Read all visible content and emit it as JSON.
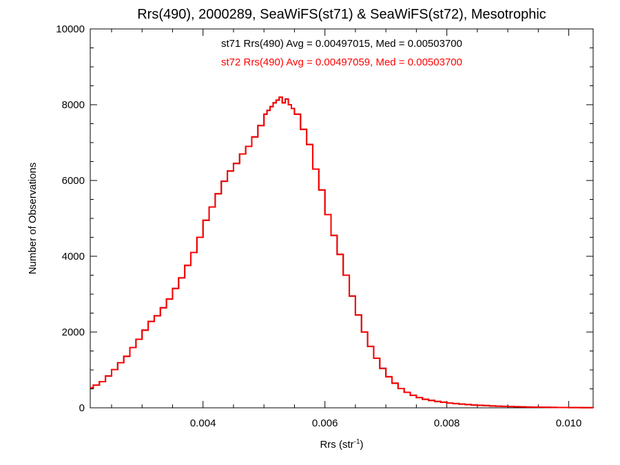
{
  "chart_data": {
    "type": "line",
    "step": true,
    "title": "Rrs(490), 2000289, SeaWiFS(st71) & SeaWiFS(st72), Mesotrophic",
    "xlabel_main": "Rrs (str",
    "xlabel_sup": "-1",
    "xlabel_close": ")",
    "ylabel": "Number of Observations",
    "xlim": [
      0.00215,
      0.0104
    ],
    "ylim": [
      0,
      10000
    ],
    "grid": false,
    "x_ticks": [
      0.004,
      0.006,
      0.008,
      0.01
    ],
    "x_tick_labels": [
      "0.004",
      "0.006",
      "0.008",
      "0.010"
    ],
    "y_ticks": [
      0,
      2000,
      4000,
      6000,
      8000,
      10000
    ],
    "y_tick_labels": [
      "0",
      "2000",
      "4000",
      "6000",
      "8000",
      "10000"
    ],
    "annotations": [
      {
        "text": "st71 Rrs(490) Avg = 0.00497015, Med = 0.00503700",
        "color": "#000000"
      },
      {
        "text": "st72 Rrs(490) Avg = 0.00497059, Med = 0.00503700",
        "color": "#ff0000"
      }
    ],
    "series": [
      {
        "key": "st71",
        "color": "#000000",
        "x": [
          0.00215,
          0.0022,
          0.0023,
          0.0024,
          0.0025,
          0.0026,
          0.0027,
          0.0028,
          0.0029,
          0.003,
          0.0031,
          0.0032,
          0.0033,
          0.0034,
          0.0035,
          0.0036,
          0.0037,
          0.0038,
          0.0039,
          0.004,
          0.0041,
          0.0042,
          0.0043,
          0.0044,
          0.0045,
          0.0046,
          0.0047,
          0.0048,
          0.0049,
          0.005,
          0.00505,
          0.0051,
          0.00515,
          0.0052,
          0.00525,
          0.0053,
          0.00535,
          0.0054,
          0.00545,
          0.0055,
          0.0056,
          0.0057,
          0.0058,
          0.0059,
          0.006,
          0.0061,
          0.0062,
          0.0063,
          0.0064,
          0.0065,
          0.0066,
          0.0067,
          0.0068,
          0.0069,
          0.007,
          0.0071,
          0.0072,
          0.0073,
          0.0074,
          0.0075,
          0.0076,
          0.0077,
          0.0078,
          0.0079,
          0.008,
          0.0081,
          0.0082,
          0.0083,
          0.0084,
          0.0085,
          0.0086,
          0.0087,
          0.0088,
          0.0089,
          0.009,
          0.0091,
          0.0092,
          0.0093,
          0.0094,
          0.0095,
          0.0096,
          0.0097,
          0.0098,
          0.0099,
          0.01,
          0.0101,
          0.0102,
          0.0103,
          0.0104
        ],
        "y": [
          530,
          600,
          690,
          840,
          1010,
          1190,
          1360,
          1590,
          1810,
          2050,
          2280,
          2430,
          2640,
          2870,
          3150,
          3430,
          3760,
          4100,
          4500,
          4950,
          5300,
          5650,
          5980,
          6250,
          6450,
          6700,
          6900,
          7150,
          7450,
          7750,
          7850,
          7950,
          8050,
          8120,
          8200,
          8050,
          8150,
          8000,
          7900,
          7750,
          7350,
          6950,
          6300,
          5750,
          5100,
          4550,
          4050,
          3500,
          2950,
          2450,
          2000,
          1620,
          1310,
          1040,
          820,
          650,
          510,
          410,
          330,
          270,
          225,
          195,
          168,
          148,
          128,
          112,
          98,
          86,
          75,
          66,
          58,
          50,
          44,
          38,
          33,
          29,
          25,
          21,
          18,
          15,
          13,
          11,
          9,
          8,
          7,
          6,
          5,
          4,
          3
        ]
      },
      {
        "key": "st72",
        "color": "#ff0000",
        "x": [
          0.00215,
          0.0022,
          0.0023,
          0.0024,
          0.0025,
          0.0026,
          0.0027,
          0.0028,
          0.0029,
          0.003,
          0.0031,
          0.0032,
          0.0033,
          0.0034,
          0.0035,
          0.0036,
          0.0037,
          0.0038,
          0.0039,
          0.004,
          0.0041,
          0.0042,
          0.0043,
          0.0044,
          0.0045,
          0.0046,
          0.0047,
          0.0048,
          0.0049,
          0.005,
          0.00505,
          0.0051,
          0.00515,
          0.0052,
          0.00525,
          0.0053,
          0.00535,
          0.0054,
          0.00545,
          0.0055,
          0.0056,
          0.0057,
          0.0058,
          0.0059,
          0.006,
          0.0061,
          0.0062,
          0.0063,
          0.0064,
          0.0065,
          0.0066,
          0.0067,
          0.0068,
          0.0069,
          0.007,
          0.0071,
          0.0072,
          0.0073,
          0.0074,
          0.0075,
          0.0076,
          0.0077,
          0.0078,
          0.0079,
          0.008,
          0.0081,
          0.0082,
          0.0083,
          0.0084,
          0.0085,
          0.0086,
          0.0087,
          0.0088,
          0.0089,
          0.009,
          0.0091,
          0.0092,
          0.0093,
          0.0094,
          0.0095,
          0.0096,
          0.0097,
          0.0098,
          0.0099,
          0.01,
          0.0101,
          0.0102,
          0.0103,
          0.0104
        ],
        "y": [
          530,
          600,
          690,
          840,
          1010,
          1190,
          1360,
          1590,
          1810,
          2050,
          2280,
          2430,
          2640,
          2870,
          3150,
          3430,
          3760,
          4100,
          4500,
          4950,
          5300,
          5650,
          5980,
          6250,
          6450,
          6700,
          6900,
          7150,
          7450,
          7750,
          7850,
          7950,
          8050,
          8120,
          8200,
          8050,
          8150,
          8000,
          7900,
          7750,
          7350,
          6950,
          6300,
          5750,
          5100,
          4550,
          4050,
          3500,
          2950,
          2450,
          2000,
          1620,
          1310,
          1040,
          820,
          650,
          510,
          410,
          330,
          270,
          225,
          195,
          168,
          148,
          128,
          112,
          98,
          86,
          75,
          66,
          58,
          50,
          44,
          38,
          33,
          29,
          25,
          21,
          18,
          15,
          13,
          11,
          9,
          8,
          7,
          6,
          5,
          4,
          3
        ]
      }
    ]
  }
}
